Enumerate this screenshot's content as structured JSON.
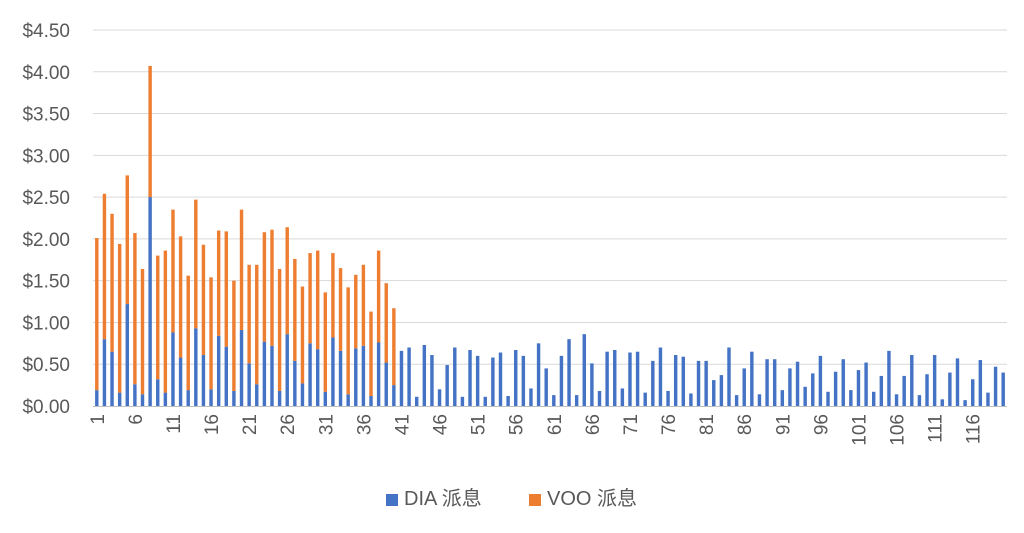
{
  "chart_data": {
    "type": "bar",
    "stacked": true,
    "title": "",
    "xlabel": "",
    "ylabel": "",
    "ylim": [
      0,
      4.5
    ],
    "y_ticks": [
      "$0.00",
      "$0.50",
      "$1.00",
      "$1.50",
      "$2.00",
      "$2.50",
      "$3.00",
      "$3.50",
      "$4.00",
      "$4.50"
    ],
    "x_ticks": [
      "1",
      "6",
      "11",
      "16",
      "21",
      "26",
      "31",
      "36",
      "41",
      "46",
      "51",
      "56",
      "61",
      "66",
      "71",
      "76",
      "81",
      "86",
      "91",
      "96",
      "101",
      "106",
      "111",
      "116"
    ],
    "grid": true,
    "legend_position": "bottom",
    "colors": {
      "DIA": "#4472c4",
      "VOO": "#ed7d31"
    },
    "categories_count": 120,
    "series": [
      {
        "name": "DIA 派息",
        "values": [
          0.19,
          0.8,
          0.65,
          0.16,
          1.22,
          0.26,
          0.14,
          2.5,
          0.32,
          0.16,
          0.88,
          0.58,
          0.19,
          0.93,
          0.61,
          0.2,
          0.84,
          0.71,
          0.18,
          0.91,
          0.51,
          0.26,
          0.77,
          0.72,
          0.18,
          0.86,
          0.54,
          0.27,
          0.75,
          0.68,
          0.17,
          0.82,
          0.66,
          0.14,
          0.69,
          0.72,
          0.12,
          0.76,
          0.52,
          0.25,
          0.66,
          0.7,
          0.11,
          0.73,
          0.61,
          0.2,
          0.49,
          0.7,
          0.11,
          0.67,
          0.6,
          0.11,
          0.58,
          0.64,
          0.12,
          0.67,
          0.6,
          0.21,
          0.75,
          0.45,
          0.13,
          0.6,
          0.8,
          0.13,
          0.86,
          0.51,
          0.18,
          0.65,
          0.67,
          0.21,
          0.64,
          0.65,
          0.16,
          0.54,
          0.7,
          0.18,
          0.61,
          0.59,
          0.15,
          0.54,
          0.54,
          0.31,
          0.37,
          0.7,
          0.13,
          0.45,
          0.65,
          0.14,
          0.56,
          0.56,
          0.19,
          0.45,
          0.53,
          0.23,
          0.39,
          0.6,
          0.17,
          0.41,
          0.56,
          0.19,
          0.43,
          0.52,
          0.17,
          0.36,
          0.66,
          0.14,
          0.36,
          0.61,
          0.13,
          0.38,
          0.61,
          0.08,
          0.4,
          0.57,
          0.07,
          0.32,
          0.55,
          0.16,
          0.47,
          0.4
        ]
      },
      {
        "name": "VOO 派息",
        "values": [
          1.82,
          1.74,
          1.65,
          1.78,
          1.54,
          1.81,
          1.5,
          1.57,
          1.48,
          1.7,
          1.47,
          1.45,
          1.37,
          1.54,
          1.32,
          1.34,
          1.26,
          1.38,
          1.32,
          1.44,
          1.18,
          1.43,
          1.31,
          1.39,
          1.46,
          1.28,
          1.22,
          1.16,
          1.08,
          1.18,
          1.19,
          1.01,
          0.99,
          1.28,
          0.88,
          0.97,
          1.01,
          1.1,
          0.95,
          0.92,
          0,
          0,
          0,
          0,
          0,
          0,
          0,
          0,
          0,
          0,
          0,
          0,
          0,
          0,
          0,
          0,
          0,
          0,
          0,
          0,
          0,
          0,
          0,
          0,
          0,
          0,
          0,
          0,
          0,
          0,
          0,
          0,
          0,
          0,
          0,
          0,
          0,
          0,
          0,
          0,
          0,
          0,
          0,
          0,
          0,
          0,
          0,
          0,
          0,
          0,
          0,
          0,
          0,
          0,
          0,
          0,
          0,
          0,
          0,
          0,
          0,
          0,
          0,
          0,
          0,
          0,
          0,
          0,
          0,
          0,
          0,
          0,
          0,
          0,
          0,
          0,
          0,
          0,
          0,
          0
        ]
      }
    ]
  }
}
